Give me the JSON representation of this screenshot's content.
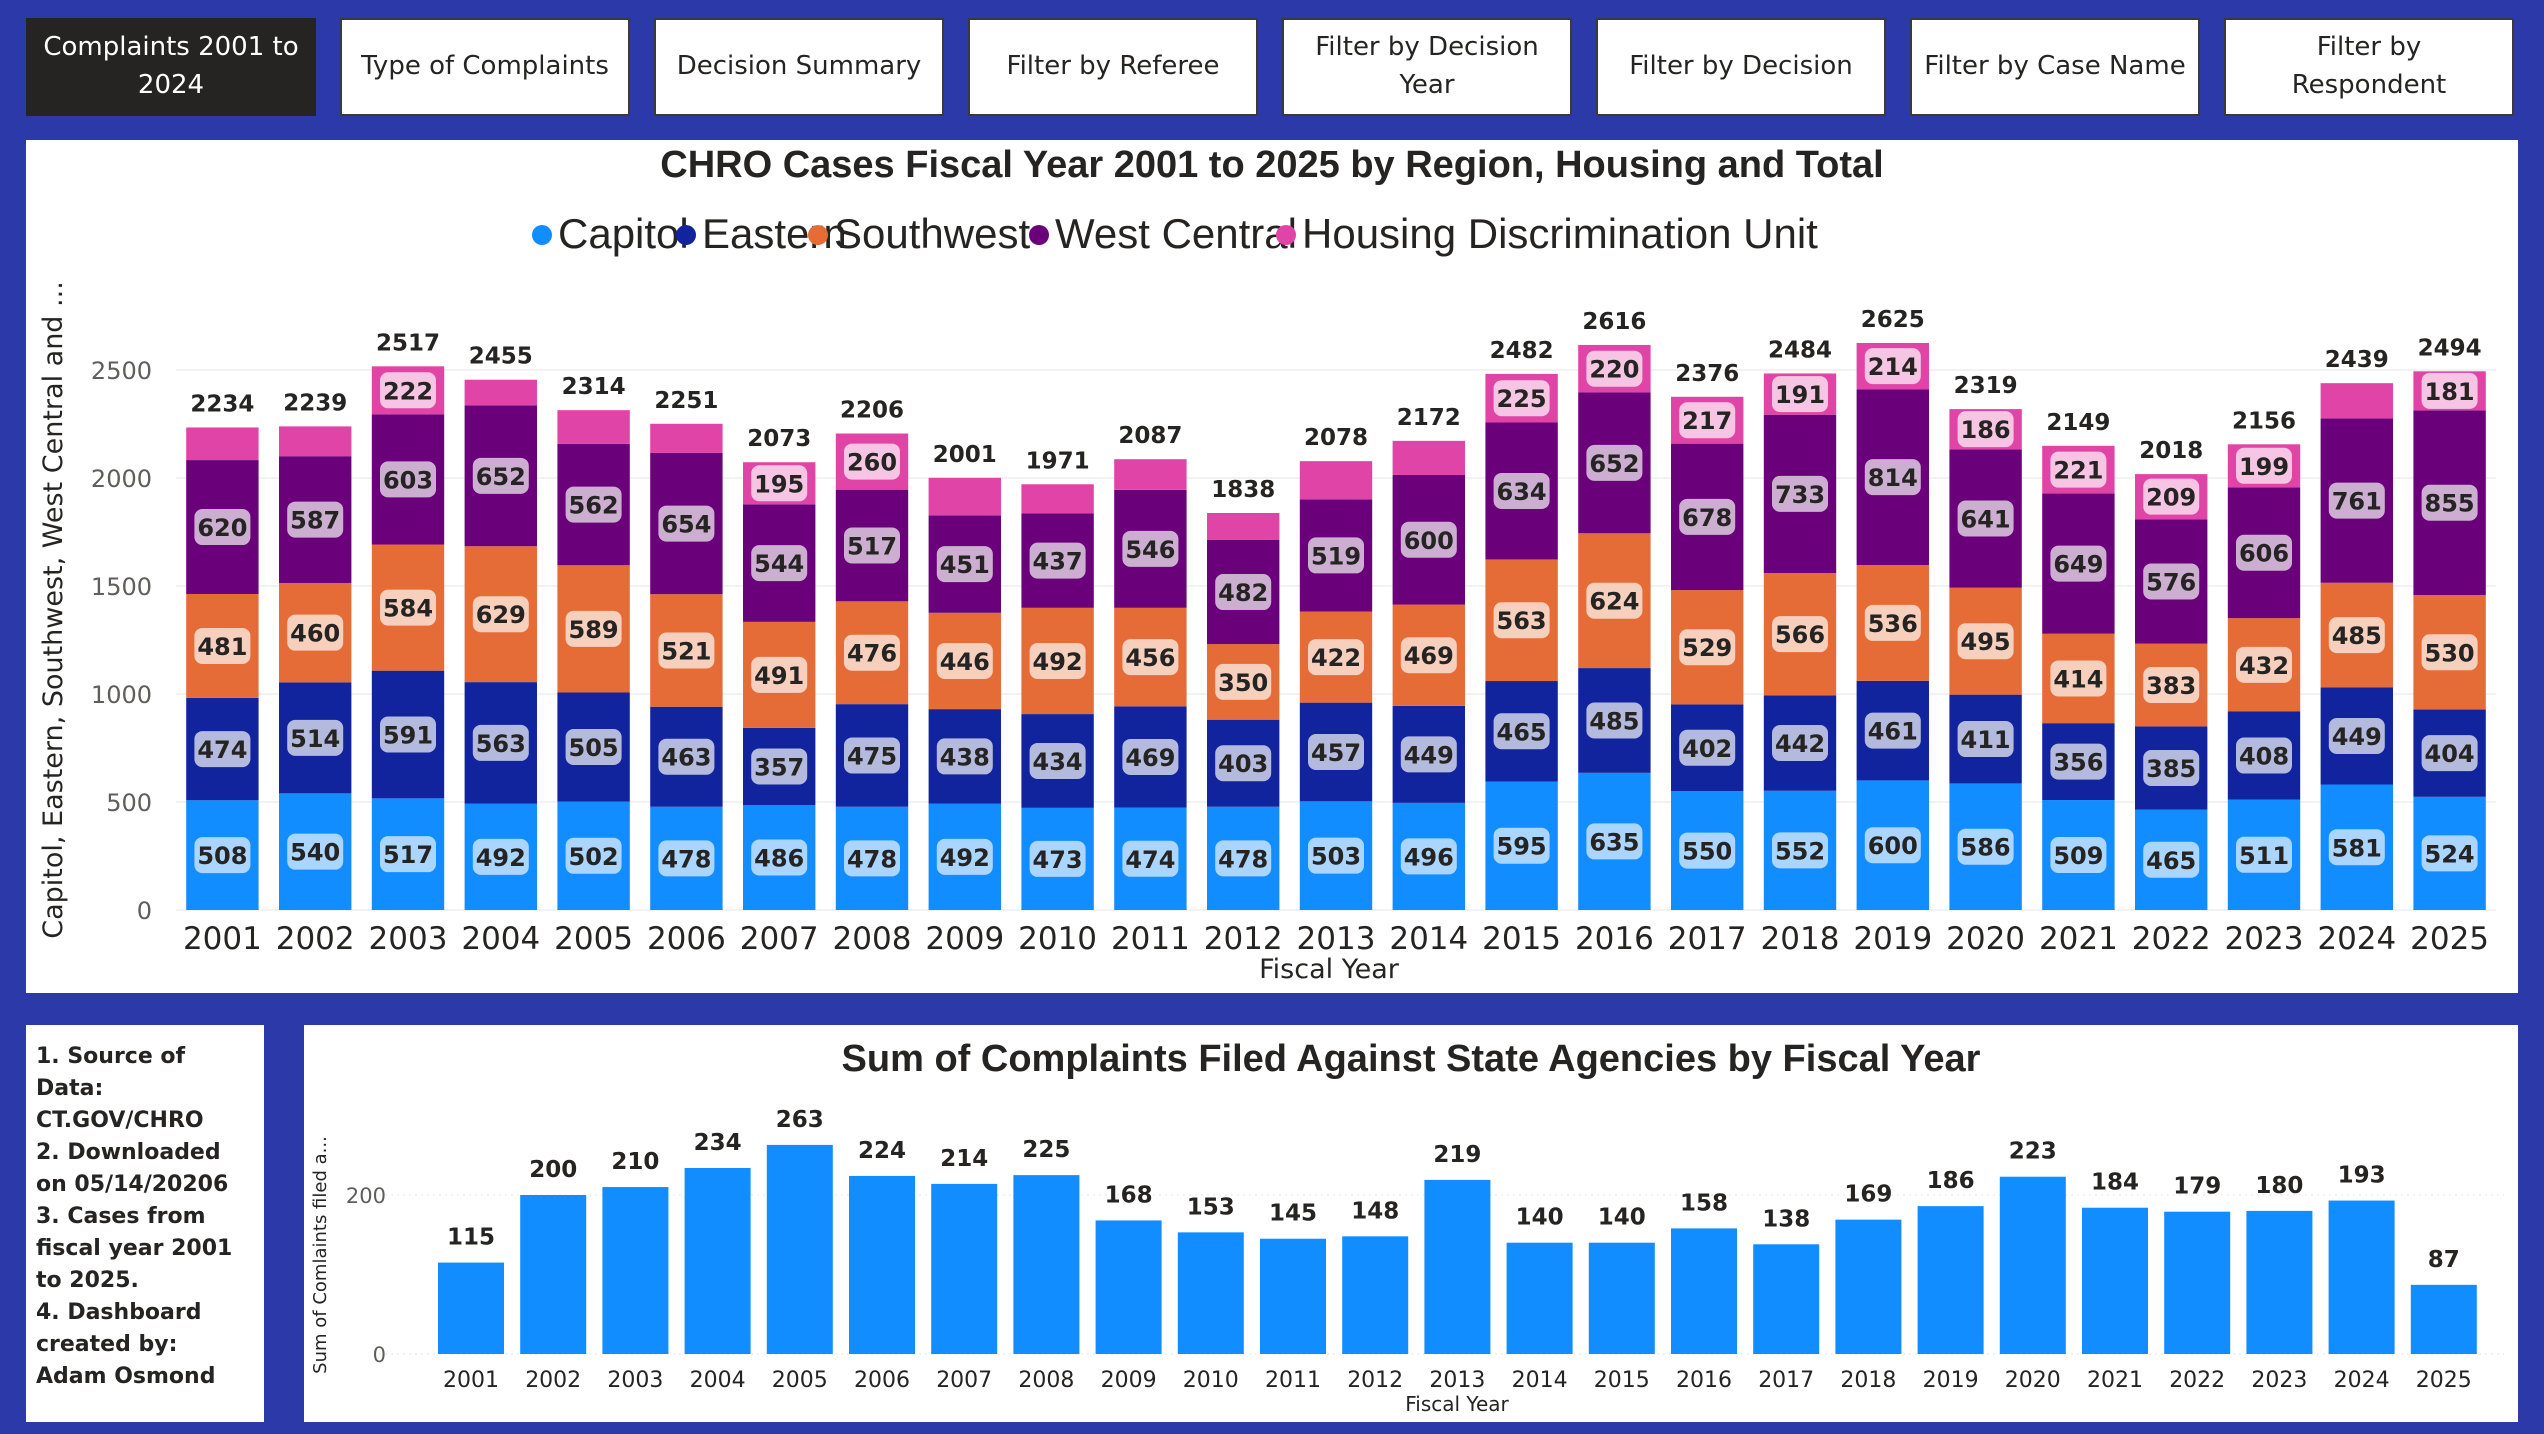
{
  "nav": {
    "buttons": [
      {
        "label": "Complaints 2001 to 2024",
        "active": true
      },
      {
        "label": "Type of Complaints",
        "active": false
      },
      {
        "label": "Decision Summary",
        "active": false
      },
      {
        "label": "Filter by Referee",
        "active": false
      },
      {
        "label": "Filter by Decision Year",
        "active": false
      },
      {
        "label": "Filter by Decision",
        "active": false
      },
      {
        "label": "Filter by Case Name",
        "active": false
      },
      {
        "label": "Filter by Respondent",
        "active": false
      }
    ]
  },
  "notes": {
    "lines": [
      "1. Source of Data: CT.GOV/CHRO",
      "2. Downloaded on 05/14/20206",
      "3. Cases from fiscal year 2001 to 2025.",
      "4. Dashboard created by: Adam Osmond"
    ]
  },
  "chart_data": [
    {
      "type": "bar",
      "stacked": true,
      "title": "CHRO Cases Fiscal Year 2001 to 2025 by Region, Housing and Total",
      "xlabel": "Fiscal Year",
      "ylabel": "Capitol, Eastern, Southwest, West Central and ...",
      "ylim": [
        0,
        2700
      ],
      "yticks": [
        0,
        500,
        1000,
        1500,
        2000,
        2500
      ],
      "legend_position": "top",
      "categories": [
        "2001",
        "2002",
        "2003",
        "2004",
        "2005",
        "2006",
        "2007",
        "2008",
        "2009",
        "2010",
        "2011",
        "2012",
        "2013",
        "2014",
        "2015",
        "2016",
        "2017",
        "2018",
        "2019",
        "2020",
        "2021",
        "2022",
        "2023",
        "2024",
        "2025"
      ],
      "series": [
        {
          "name": "Capitol",
          "color": "#118dff",
          "label_bg": "#a9d5ff",
          "values": [
            508,
            540,
            517,
            492,
            502,
            478,
            486,
            478,
            492,
            473,
            474,
            478,
            503,
            496,
            595,
            635,
            550,
            552,
            600,
            586,
            509,
            465,
            511,
            581,
            524
          ]
        },
        {
          "name": "Eastern",
          "color": "#12239e",
          "label_bg": "#b4b9de",
          "values": [
            474,
            514,
            591,
            563,
            505,
            463,
            357,
            475,
            438,
            434,
            469,
            403,
            457,
            449,
            465,
            485,
            402,
            442,
            461,
            411,
            356,
            385,
            408,
            449,
            404
          ]
        },
        {
          "name": "Southwest",
          "color": "#e66c37",
          "label_bg": "#f7cfbd",
          "values": [
            481,
            460,
            584,
            629,
            589,
            521,
            491,
            476,
            446,
            492,
            456,
            350,
            422,
            469,
            563,
            624,
            529,
            566,
            536,
            495,
            414,
            383,
            432,
            485,
            530
          ]
        },
        {
          "name": "West Central",
          "color": "#6b007b",
          "label_bg": "#cbaed0",
          "values": [
            620,
            587,
            603,
            652,
            562,
            654,
            544,
            517,
            451,
            437,
            546,
            482,
            519,
            600,
            634,
            652,
            678,
            733,
            814,
            641,
            649,
            576,
            606,
            761,
            855
          ]
        },
        {
          "name": "Housing Discrimination Unit",
          "color": "#e044a7",
          "label_bg": "#f5c5e3",
          "values": [
            151,
            138,
            222,
            119,
            156,
            135,
            195,
            260,
            174,
            135,
            142,
            125,
            177,
            158,
            225,
            220,
            217,
            191,
            214,
            186,
            221,
            209,
            199,
            163,
            181
          ]
        }
      ],
      "totals": [
        2234,
        2239,
        2517,
        2455,
        2314,
        2251,
        2073,
        2206,
        2001,
        1971,
        2087,
        1838,
        2078,
        2172,
        2482,
        2616,
        2376,
        2484,
        2625,
        2319,
        2149,
        2018,
        2156,
        2439,
        2494
      ],
      "labeled_housing_years": [
        "2003",
        "2007",
        "2008",
        "2015",
        "2016",
        "2017",
        "2018",
        "2019",
        "2020",
        "2021",
        "2022",
        "2023",
        "2025"
      ]
    },
    {
      "type": "bar",
      "title": "Sum of Complaints Filed Against State Agencies by Fiscal Year",
      "xlabel": "Fiscal Year",
      "ylabel": "Sum of Comlaints filed a...",
      "ylim": [
        0,
        270
      ],
      "yticks": [
        0,
        200
      ],
      "color": "#118dff",
      "categories": [
        "2001",
        "2002",
        "2003",
        "2004",
        "2005",
        "2006",
        "2007",
        "2008",
        "2009",
        "2010",
        "2011",
        "2012",
        "2013",
        "2014",
        "2015",
        "2016",
        "2017",
        "2018",
        "2019",
        "2020",
        "2021",
        "2022",
        "2023",
        "2024",
        "2025"
      ],
      "values": [
        115,
        200,
        210,
        234,
        263,
        224,
        214,
        225,
        168,
        153,
        145,
        148,
        219,
        140,
        140,
        158,
        138,
        169,
        186,
        223,
        184,
        179,
        180,
        193,
        87
      ]
    }
  ]
}
